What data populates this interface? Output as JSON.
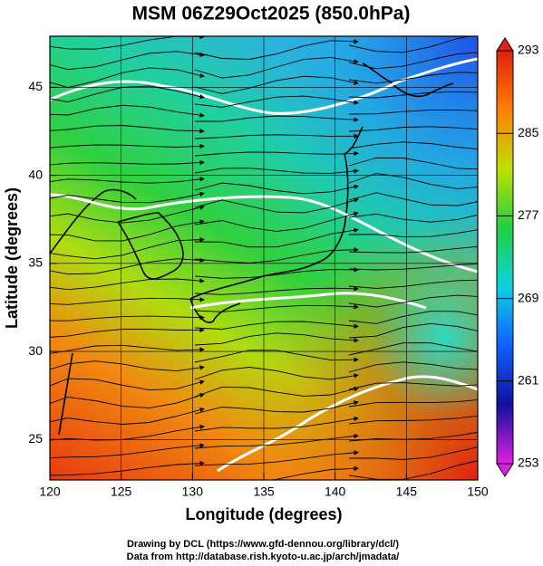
{
  "chart_data": {
    "type": "map",
    "title": "MSM 06Z29Oct2025 (850.0hPa)",
    "xlabel": "Longitude (degrees)",
    "ylabel": "Latitude  (degrees)",
    "xlim": [
      120,
      150
    ],
    "xticks": [
      120,
      125,
      130,
      135,
      140,
      145,
      150
    ],
    "ylim": [
      22.7,
      47.9
    ],
    "yticks": [
      25,
      30,
      35,
      40,
      45
    ],
    "grid": true,
    "colorbar": {
      "lim": [
        253,
        293
      ],
      "ticks": [
        253,
        261,
        269,
        277,
        285,
        293
      ],
      "colors": [
        "#e020e0",
        "#1010a0",
        "#1060ff",
        "#10d0e0",
        "#20d040",
        "#c0e000",
        "#ff8000",
        "#e02010"
      ]
    },
    "credits": [
      "Drawing by DCL (https://www.gfd-dennou.org/library/dcl/)",
      "Data from http://database.rish.kyoto-u.ac.jp/arch/jmadata/"
    ]
  }
}
